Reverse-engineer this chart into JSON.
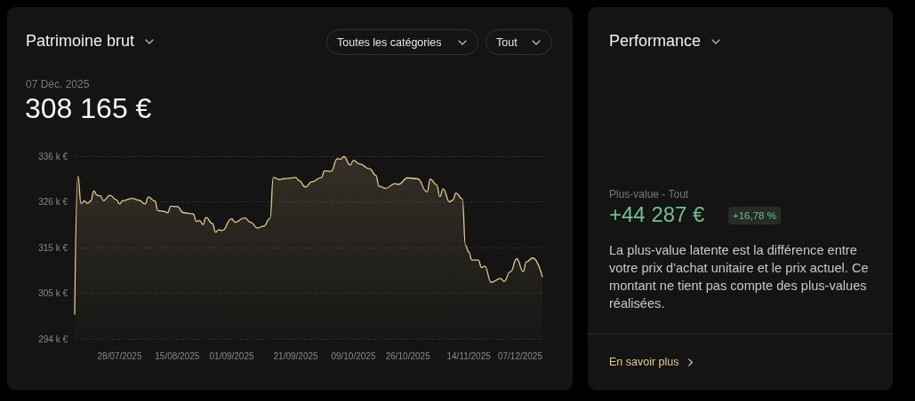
{
  "chart_data": [
    {
      "type": "area",
      "title": "Patrimoine brut",
      "annotations": [
        "07 Déc. 2025",
        "308 165 €",
        "Toutes les catégories",
        "Tout"
      ],
      "x": [
        "2025-07-14",
        "2025-07-15",
        "2025-07-16",
        "2025-07-17",
        "2025-07-18",
        "2025-07-19",
        "2025-07-20",
        "2025-07-21",
        "2025-07-22",
        "2025-07-23",
        "2025-07-25",
        "2025-07-27",
        "2025-07-28",
        "2025-07-29",
        "2025-08-01",
        "2025-08-03",
        "2025-08-05",
        "2025-08-06",
        "2025-08-08",
        "2025-08-09",
        "2025-08-11",
        "2025-08-12",
        "2025-08-13",
        "2025-08-15",
        "2025-08-17",
        "2025-08-20",
        "2025-08-21",
        "2025-08-22",
        "2025-08-23",
        "2025-08-24",
        "2025-08-26",
        "2025-08-27",
        "2025-08-28",
        "2025-08-29",
        "2025-09-01",
        "2025-09-02",
        "2025-09-05",
        "2025-09-07",
        "2025-09-09",
        "2025-09-11",
        "2025-09-13",
        "2025-09-14",
        "2025-09-16",
        "2025-09-17",
        "2025-09-21",
        "2025-09-22",
        "2025-09-24",
        "2025-09-26",
        "2025-09-29",
        "2025-09-30",
        "2025-10-02",
        "2025-10-04",
        "2025-10-05",
        "2025-10-06",
        "2025-10-08",
        "2025-10-09",
        "2025-10-11",
        "2025-10-14",
        "2025-10-16",
        "2025-10-17",
        "2025-10-19",
        "2025-10-22",
        "2025-10-23",
        "2025-10-26",
        "2025-10-29",
        "2025-11-01",
        "2025-11-02",
        "2025-11-04",
        "2025-11-05",
        "2025-11-06",
        "2025-11-08",
        "2025-11-09",
        "2025-11-10",
        "2025-11-12",
        "2025-11-13",
        "2025-11-14",
        "2025-11-15",
        "2025-11-17",
        "2025-11-18",
        "2025-11-19",
        "2025-11-21",
        "2025-11-24",
        "2025-11-25",
        "2025-11-27",
        "2025-11-29",
        "2025-12-01",
        "2025-12-02",
        "2025-12-04",
        "2025-12-07"
      ],
      "series": [
        {
          "color": "#e6c98b",
          "values": [
            299.6,
            331.4,
            325.1,
            325.7,
            325.1,
            325.7,
            328.0,
            327.0,
            326.9,
            325.8,
            327.0,
            326.0,
            325.0,
            325.8,
            326.3,
            325.9,
            325.0,
            326.6,
            325.7,
            323.5,
            323.3,
            323.0,
            324.5,
            324.4,
            323.0,
            322.7,
            321.0,
            321.2,
            320.3,
            321.9,
            320.5,
            318.5,
            319.1,
            318.9,
            321.6,
            320.8,
            321.8,
            320.8,
            319.5,
            319.9,
            321.7,
            331.1,
            330.6,
            330.8,
            331.1,
            330.4,
            328.9,
            330.1,
            331.1,
            332.6,
            332.5,
            335.4,
            335.3,
            335.9,
            334.0,
            335.0,
            334.2,
            333.1,
            331.6,
            329.1,
            328.6,
            329.7,
            329.5,
            331.0,
            330.8,
            327.8,
            330.7,
            329.4,
            326.7,
            328.5,
            325.5,
            325.9,
            327.5,
            326.2,
            315.5,
            314.0,
            312.1,
            312.1,
            310.4,
            310.7,
            307.0,
            307.9,
            307.2,
            309.4,
            312.4,
            309.5,
            311.7,
            312.6,
            308.2
          ]
        }
      ],
      "xlim": [
        "2025-07-14",
        "2025-12-07"
      ],
      "xticks": [
        {
          "value": "2025-07-28",
          "label": "28/07/2025"
        },
        {
          "value": "2025-08-15",
          "label": "15/08/2025"
        },
        {
          "value": "2025-09-01",
          "label": "01/09/2025"
        },
        {
          "value": "2025-09-21",
          "label": "21/09/2025"
        },
        {
          "value": "2025-10-09",
          "label": "09/10/2025"
        },
        {
          "value": "2025-10-26",
          "label": "26/10/2025"
        },
        {
          "value": "2025-11-14",
          "label": "14/11/2025"
        },
        {
          "value": "2025-12-07",
          "label": "07/12/2025"
        }
      ],
      "ylim": [
        294,
        336
      ],
      "yticks": [
        {
          "value": 294,
          "label": "294 k €"
        },
        {
          "value": 304.5,
          "label": "305 k €"
        },
        {
          "value": 315,
          "label": "315 k €"
        },
        {
          "value": 325.5,
          "label": "326 k €"
        },
        {
          "value": 336,
          "label": "336 k €"
        }
      ],
      "grid": "y",
      "marker": "none"
    },
    {
      "type": "other",
      "title": "Performance",
      "annotations": [
        "Plus-value - Tout",
        "+44 287 €",
        "+16,78 %",
        "La plus-value latente est la différence entre votre prix d'achat unitaire et le prix actuel. Ce montant ne tient pas compte des plus-values réalisées.",
        "En savoir plus"
      ]
    }
  ]
}
